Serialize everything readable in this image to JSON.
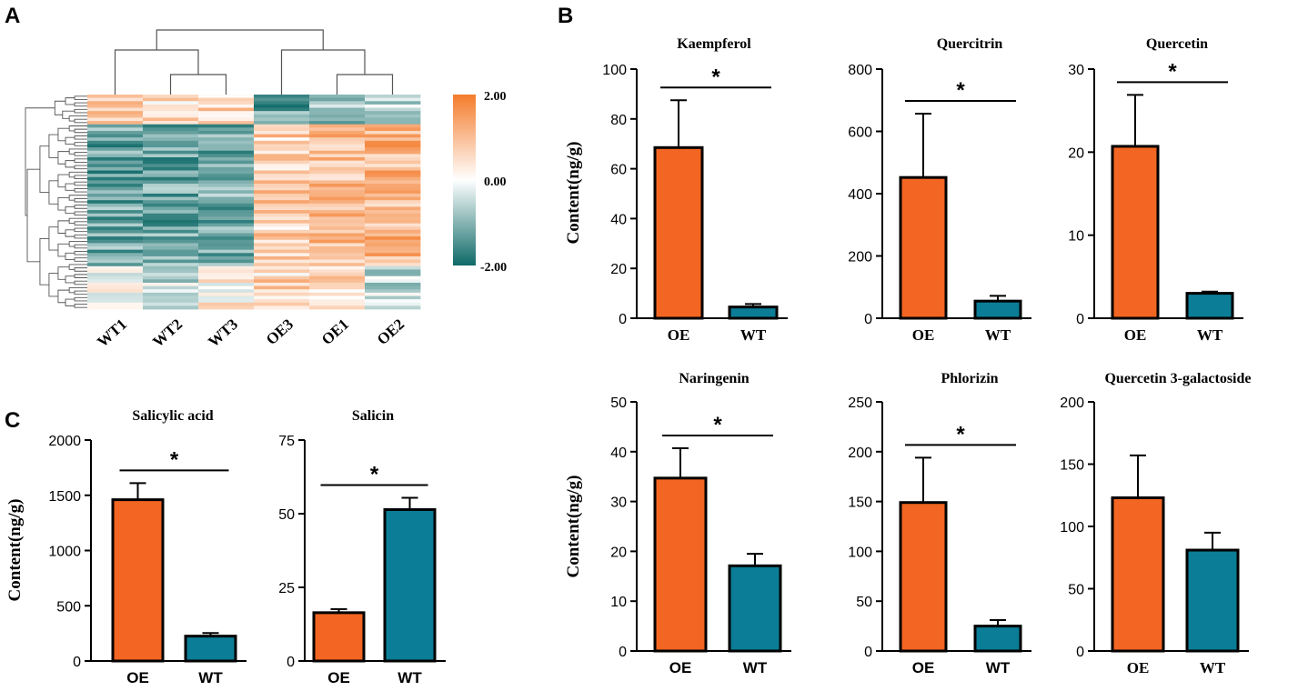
{
  "panel_labels": {
    "a": "A",
    "b": "B",
    "c": "C"
  },
  "colors": {
    "oe": "#F26522",
    "wt": "#0C7D96",
    "heat_high": "#F47C2C",
    "heat_mid": "#FFFFFF",
    "heat_low": "#0E6A68"
  },
  "chart_data": [
    {
      "type": "heatmap",
      "panel": "A",
      "columns": [
        "WT1",
        "WT2",
        "WT3",
        "OE3",
        "OE1",
        "OE2"
      ],
      "n_rows": 65,
      "colorbar": {
        "max_label": "2.00",
        "mid_label": "0.00",
        "min_label": "-2.00",
        "range": [
          -2,
          2
        ]
      },
      "dendrogram": "hierarchical clustering of rows and columns"
    },
    {
      "type": "bar",
      "panel": "B",
      "title": "Kaempferol",
      "ylabel": "Content(ng/g)",
      "categories": [
        "OE",
        "WT"
      ],
      "values": [
        68.5,
        4.5
      ],
      "errors": [
        19,
        1.2
      ],
      "ylim": [
        0,
        100
      ],
      "yticks": [
        "0",
        "20",
        "40",
        "60",
        "80",
        "100"
      ],
      "significance": "*"
    },
    {
      "type": "bar",
      "panel": "B",
      "title": "Quercitrin",
      "ylabel": "",
      "categories": [
        "OE",
        "WT"
      ],
      "values": [
        452,
        55
      ],
      "errors": [
        205,
        17
      ],
      "ylim": [
        0,
        800
      ],
      "yticks": [
        "0",
        "200",
        "400",
        "600",
        "800"
      ],
      "significance": "*"
    },
    {
      "type": "bar",
      "panel": "B",
      "title": "Quercetin",
      "ylabel": "",
      "categories": [
        "OE",
        "WT"
      ],
      "values": [
        20.7,
        3.0
      ],
      "errors": [
        6.2,
        0.2
      ],
      "ylim": [
        0,
        30
      ],
      "yticks": [
        "0",
        "10",
        "20",
        "30"
      ],
      "significance": "*"
    },
    {
      "type": "bar",
      "panel": "B",
      "title": "Naringenin",
      "ylabel": "Content(ng/g)",
      "categories": [
        "OE",
        "WT"
      ],
      "values": [
        34.7,
        17.1
      ],
      "errors": [
        6.0,
        2.4
      ],
      "ylim": [
        0,
        50
      ],
      "yticks": [
        "0",
        "10",
        "20",
        "30",
        "40",
        "50"
      ],
      "significance": "*"
    },
    {
      "type": "bar",
      "panel": "B",
      "title": "Phlorizin",
      "ylabel": "",
      "categories": [
        "OE",
        "WT"
      ],
      "values": [
        149,
        25
      ],
      "errors": [
        45,
        6
      ],
      "ylim": [
        0,
        250
      ],
      "yticks": [
        "0",
        "50",
        "100",
        "150",
        "200",
        "250"
      ],
      "significance": "*"
    },
    {
      "type": "bar",
      "panel": "B",
      "title": "Quercetin 3-galactoside",
      "ylabel": "",
      "categories": [
        "OE",
        "WT"
      ],
      "values": [
        123,
        81
      ],
      "errors": [
        34,
        14
      ],
      "ylim": [
        0,
        200
      ],
      "yticks": [
        "0",
        "50",
        "100",
        "150",
        "200"
      ],
      "significance": ""
    },
    {
      "type": "bar",
      "panel": "C",
      "title": "Salicylic acid",
      "ylabel": "Content(ng/g)",
      "categories": [
        "OE",
        "WT"
      ],
      "values": [
        1460,
        225
      ],
      "errors": [
        150,
        28
      ],
      "ylim": [
        0,
        2000
      ],
      "yticks": [
        "0",
        "500",
        "1000",
        "1500",
        "2000"
      ],
      "significance": "*"
    },
    {
      "type": "bar",
      "panel": "C",
      "title": "Salicin",
      "ylabel": "",
      "categories": [
        "OE",
        "WT"
      ],
      "values": [
        16.4,
        51.4
      ],
      "errors": [
        1.2,
        4.0
      ],
      "ylim": [
        0,
        75
      ],
      "yticks": [
        "0",
        "25",
        "50",
        "75"
      ],
      "significance": "*"
    }
  ]
}
